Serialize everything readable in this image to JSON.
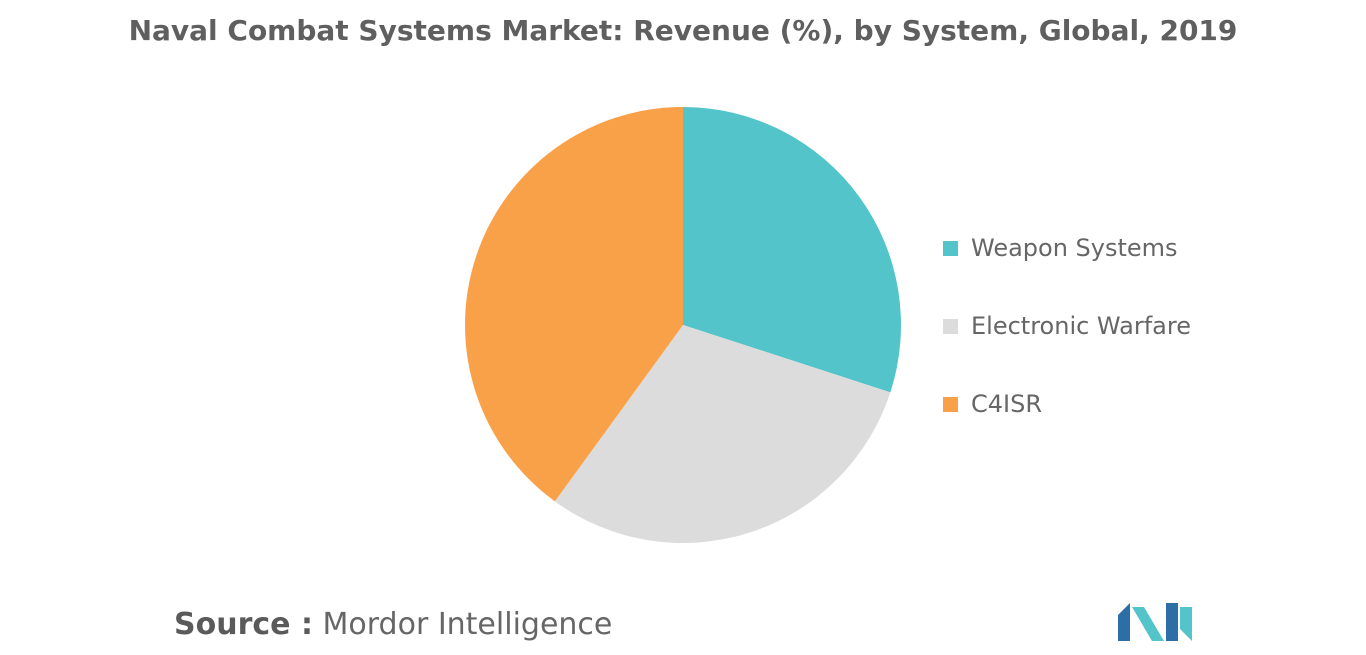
{
  "title": "Naval Combat Systems Market: Revenue (%), by System, Global, 2019",
  "source": {
    "label": "Source :",
    "name": "Mordor Intelligence"
  },
  "colors": {
    "weapon_systems": "#53c4c9",
    "electronic_warfare": "#dcdcdc",
    "c4isr": "#f9a149",
    "logo_dark": "#2e6ea6",
    "logo_light": "#53c4c9"
  },
  "legend": {
    "items": [
      {
        "label": "Weapon Systems",
        "color": "#53c4c9"
      },
      {
        "label": "Electronic Warfare",
        "color": "#dcdcdc"
      },
      {
        "label": "C4ISR",
        "color": "#f9a149"
      }
    ]
  },
  "chart_data": {
    "type": "pie",
    "title": "Naval Combat Systems Market: Revenue (%), by System, Global, 2019",
    "categories": [
      "Weapon Systems",
      "Electronic Warfare",
      "C4ISR"
    ],
    "values": [
      30,
      30,
      40
    ],
    "colors": [
      "#53c4c9",
      "#dcdcdc",
      "#f9a149"
    ],
    "start_angle": "12 o'clock",
    "direction": "clockwise",
    "legend_position": "right"
  }
}
